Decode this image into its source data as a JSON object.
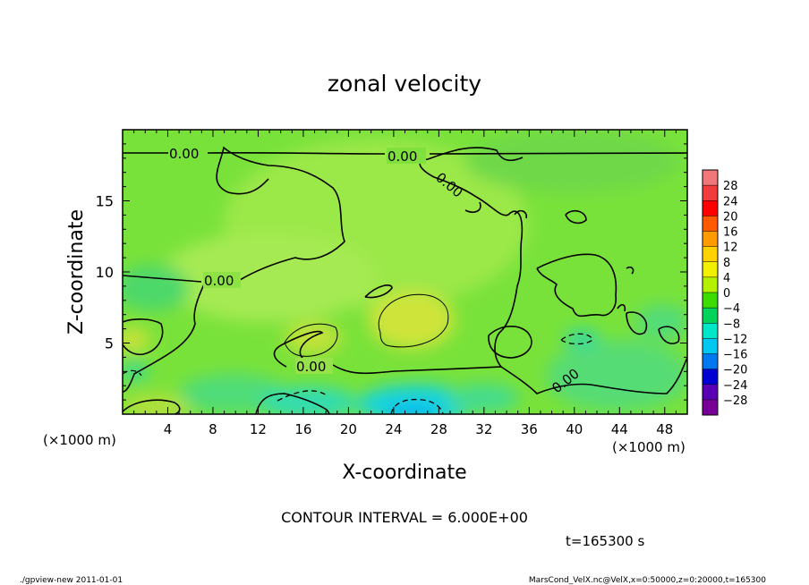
{
  "chart_data": {
    "type": "heatmap",
    "title": "zonal velocity",
    "xlabel": "X-coordinate",
    "ylabel": "Z-coordinate",
    "x_unit_label": "(×1000 m)",
    "z_unit_label": "(×1000 m)",
    "xlim": [
      0,
      50
    ],
    "ylim": [
      0,
      20
    ],
    "x_ticks": [
      4,
      8,
      12,
      16,
      20,
      24,
      28,
      32,
      36,
      40,
      44,
      48
    ],
    "y_ticks": [
      5,
      10,
      15
    ],
    "contour_interval_label": "CONTOUR INTERVAL = 6.000E+00",
    "time_label": "t=165300 s",
    "contour_labels": [
      "0.00",
      "0.00",
      "0.00",
      "0.00",
      "0.00",
      "0.00"
    ],
    "colorbar": {
      "levels": [
        "28",
        "24",
        "20",
        "16",
        "12",
        "8",
        "4",
        "0",
        "−4",
        "−8",
        "−12",
        "−16",
        "−20",
        "−24",
        "−28"
      ],
      "colors": [
        "#f07878",
        "#f03c3c",
        "#ff0000",
        "#ff5a00",
        "#ff9a00",
        "#ffd200",
        "#f0f000",
        "#b4f000",
        "#3cdc00",
        "#00d25a",
        "#00e6c8",
        "#00c8f0",
        "#0078f0",
        "#0000d2",
        "#5a00b4",
        "#780096"
      ]
    }
  },
  "footer": {
    "left": "./gpview-new   2011-01-01",
    "right": "MarsCond_VelX.nc@VelX,x=0:50000,z=0:20000,t=165300"
  }
}
